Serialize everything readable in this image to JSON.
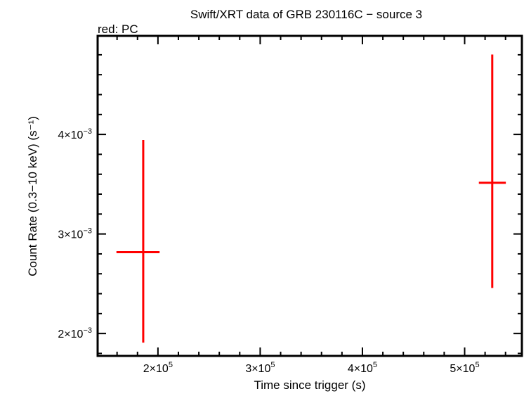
{
  "chart_data": {
    "type": "scatter",
    "title": "Swift/XRT data of GRB 230116C − source 3",
    "subtitle": "red: PC",
    "xlabel": "Time since trigger (s)",
    "ylabel": "Count Rate (0.3−10 keV) (s⁻¹)",
    "xlim": [
      141000,
      556000
    ],
    "ylim": [
      0.001775,
      0.00499
    ],
    "xticks": [
      {
        "value": 200000,
        "mant": "2",
        "exp": "5"
      },
      {
        "value": 300000,
        "mant": "3",
        "exp": "5"
      },
      {
        "value": 400000,
        "mant": "4",
        "exp": "5"
      },
      {
        "value": 500000,
        "mant": "5",
        "exp": "5"
      }
    ],
    "yticks": [
      {
        "value": 0.002,
        "mant": "2",
        "exp": "−3"
      },
      {
        "value": 0.003,
        "mant": "3",
        "exp": "−3"
      },
      {
        "value": 0.004,
        "mant": "4",
        "exp": "−3"
      }
    ],
    "x_minor_step": 20000,
    "y_minor_step": 0.0002,
    "grid": false,
    "series": [
      {
        "color": "#ff0000",
        "points": [
          {
            "x": 185600,
            "xlo": 159400,
            "xhi": 201600,
            "y": 0.002817,
            "ylo": 0.001908,
            "yhi": 0.003944
          },
          {
            "x": 527000,
            "xlo": 513900,
            "xhi": 540300,
            "y": 0.003514,
            "ylo": 0.002458,
            "yhi": 0.004803
          }
        ]
      }
    ]
  }
}
